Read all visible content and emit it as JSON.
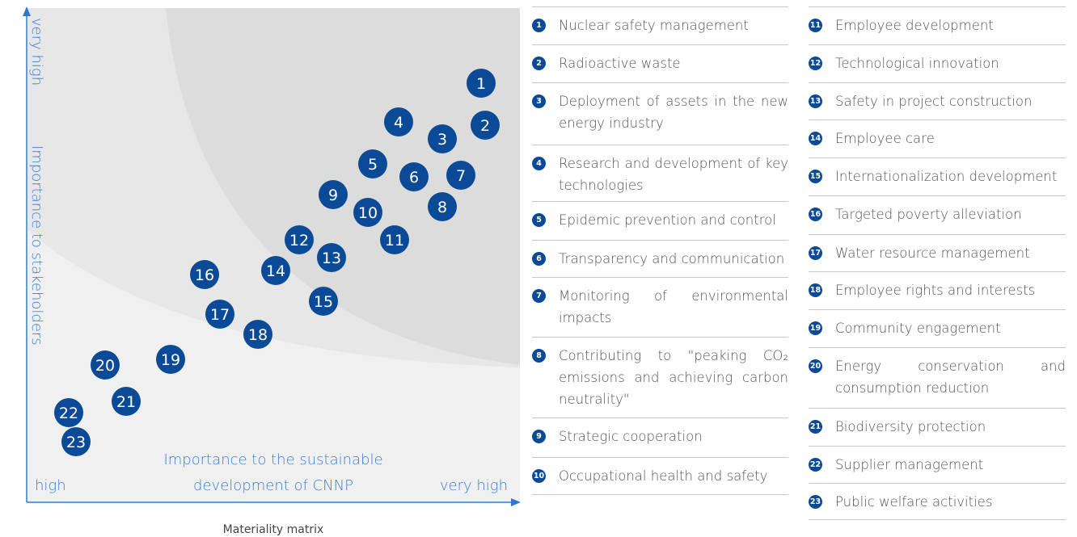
{
  "matrix": {
    "y_axis": {
      "top_label": "very high",
      "title": "Importance to stakeholders"
    },
    "x_axis": {
      "left_label": "high",
      "title_line1": "Importance to the sustainable",
      "title_line2": "development of CNNP",
      "right_label": "very high"
    },
    "caption": "Materiality matrix"
  },
  "items": [
    {
      "number": "1",
      "label": "Nuclear safety management"
    },
    {
      "number": "2",
      "label": "Radioactive waste"
    },
    {
      "number": "3",
      "label": "Deployment of assets in the new energy industry"
    },
    {
      "number": "4",
      "label": "Research and development of key technologies"
    },
    {
      "number": "5",
      "label": "Epidemic prevention and control"
    },
    {
      "number": "6",
      "label": "Transparency and communication"
    },
    {
      "number": "7",
      "label": "Monitoring of environmental impacts"
    },
    {
      "number": "8",
      "label": "Contributing to \"peaking CO₂ emissions and achieving carbon neutrality\""
    },
    {
      "number": "9",
      "label": "Strategic cooperation"
    },
    {
      "number": "10",
      "label": "Occupational health and safety"
    },
    {
      "number": "11",
      "label": "Employee development"
    },
    {
      "number": "12",
      "label": "Technological innovation"
    },
    {
      "number": "13",
      "label": "Safety in project construction"
    },
    {
      "number": "14",
      "label": "Employee care"
    },
    {
      "number": "15",
      "label": "Internationalization development"
    },
    {
      "number": "16",
      "label": "Targeted poverty alleviation"
    },
    {
      "number": "17",
      "label": "Water resource management"
    },
    {
      "number": "18",
      "label": "Employee rights and interests"
    },
    {
      "number": "19",
      "label": "Community engagement"
    },
    {
      "number": "20",
      "label": "Energy conservation and consumption reduction"
    },
    {
      "number": "21",
      "label": "Biodiversity protection"
    },
    {
      "number": "22",
      "label": "Supplier management"
    },
    {
      "number": "23",
      "label": "Public welfare activities"
    }
  ]
}
